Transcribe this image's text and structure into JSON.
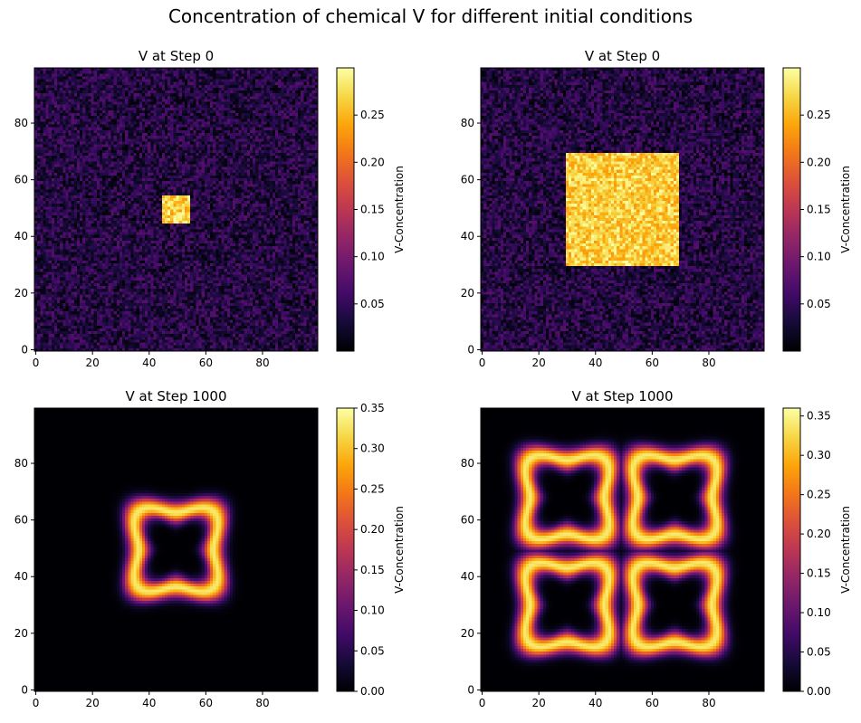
{
  "figure": {
    "suptitle": "Concentration of chemical V for different initial conditions"
  },
  "chart_data": [
    {
      "type": "heatmap",
      "title": "V at Step 0",
      "initial_square": [
        45,
        55
      ],
      "step": 0,
      "xlim": [
        0,
        99
      ],
      "ylim": [
        0,
        99
      ],
      "xticks": [
        "0",
        "20",
        "40",
        "60",
        "80"
      ],
      "yticks": [
        "0",
        "20",
        "40",
        "60",
        "80"
      ],
      "colormap": "inferno",
      "colorbar": {
        "label": "V-Concentration",
        "range": [
          0.0,
          0.3
        ],
        "ticks": [
          "0.05",
          "0.10",
          "0.15",
          "0.20",
          "0.25"
        ]
      },
      "pattern": "noise background with small bright square"
    },
    {
      "type": "heatmap",
      "title": "V at Step 0",
      "initial_square": [
        30,
        70
      ],
      "step": 0,
      "xlim": [
        0,
        99
      ],
      "ylim": [
        0,
        99
      ],
      "xticks": [
        "0",
        "20",
        "40",
        "60",
        "80"
      ],
      "yticks": [
        "0",
        "20",
        "40",
        "60",
        "80"
      ],
      "colormap": "inferno",
      "colorbar": {
        "label": "V-Concentration",
        "range": [
          0.0,
          0.3
        ],
        "ticks": [
          "0.05",
          "0.10",
          "0.15",
          "0.20",
          "0.25"
        ]
      },
      "pattern": "noise background with large bright square"
    },
    {
      "type": "heatmap",
      "title": "V at Step 1000",
      "initial_square": [
        45,
        55
      ],
      "step": 1000,
      "xlim": [
        0,
        99
      ],
      "ylim": [
        0,
        99
      ],
      "xticks": [
        "0",
        "20",
        "40",
        "60",
        "80"
      ],
      "yticks": [
        "0",
        "20",
        "40",
        "60",
        "80"
      ],
      "colormap": "inferno",
      "colorbar": {
        "label": "V-Concentration",
        "range": [
          0.0,
          0.35
        ],
        "ticks": [
          "0.00",
          "0.05",
          "0.10",
          "0.15",
          "0.20",
          "0.25",
          "0.30",
          "0.35"
        ]
      },
      "pattern": "single rounded square ring centred at (50,50)"
    },
    {
      "type": "heatmap",
      "title": "V at Step 1000",
      "initial_square": [
        30,
        70
      ],
      "step": 1000,
      "xlim": [
        0,
        99
      ],
      "ylim": [
        0,
        99
      ],
      "xticks": [
        "0",
        "20",
        "40",
        "60",
        "80"
      ],
      "yticks": [
        "0",
        "20",
        "40",
        "60",
        "80"
      ],
      "colormap": "inferno",
      "colorbar": {
        "label": "V-Concentration",
        "range": [
          0.0,
          0.36
        ],
        "ticks": [
          "0.00",
          "0.05",
          "0.10",
          "0.15",
          "0.20",
          "0.25",
          "0.30",
          "0.35"
        ]
      },
      "pattern": "four rounded square rings in a 2x2 grid"
    }
  ]
}
